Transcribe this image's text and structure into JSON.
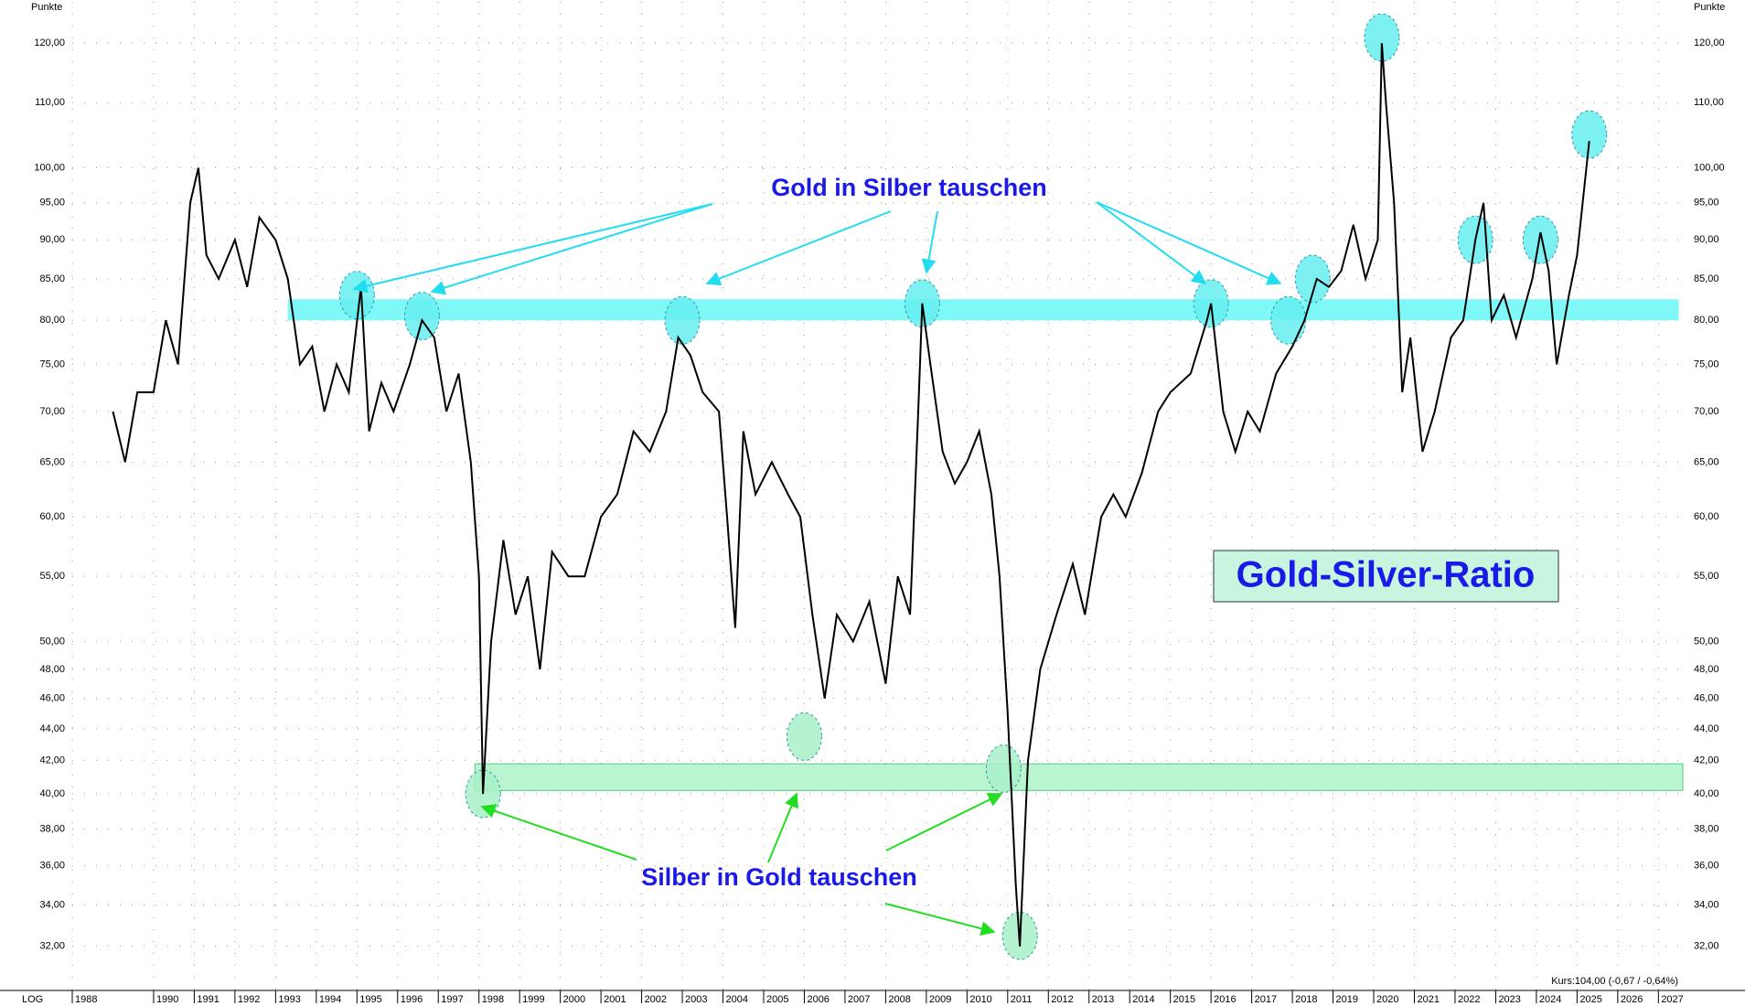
{
  "chart_data": {
    "type": "line",
    "log_scale": true,
    "grid": true,
    "axis_label": "Punkte",
    "scale_label": "LOG",
    "annotations": [
      "Gold in Silber tauschen",
      "Silber in Gold tauschen",
      "Gold-Silver-Ratio",
      "Kurs:104,00 (-0,67 / -0,64%)"
    ],
    "x": [
      1989.0,
      1989.3,
      1989.6,
      1990.0,
      1990.3,
      1990.6,
      1990.9,
      1991.1,
      1991.3,
      1991.6,
      1992.0,
      1992.3,
      1992.6,
      1993.0,
      1993.3,
      1993.6,
      1993.9,
      1994.2,
      1994.5,
      1994.8,
      1995.1,
      1995.3,
      1995.6,
      1995.9,
      1996.3,
      1996.6,
      1996.9,
      1997.2,
      1997.5,
      1997.8,
      1998.0,
      1998.1,
      1998.3,
      1998.6,
      1998.9,
      1999.2,
      1999.5,
      1999.8,
      2000.2,
      2000.6,
      2001.0,
      2001.4,
      2001.8,
      2002.2,
      2002.6,
      2002.9,
      2003.2,
      2003.5,
      2003.9,
      2004.1,
      2004.3,
      2004.5,
      2004.8,
      2005.2,
      2005.6,
      2005.9,
      2006.2,
      2006.5,
      2006.8,
      2007.2,
      2007.6,
      2008.0,
      2008.3,
      2008.6,
      2008.8,
      2008.9,
      2009.1,
      2009.4,
      2009.7,
      2010.0,
      2010.3,
      2010.6,
      2010.8,
      2011.0,
      2011.2,
      2011.3,
      2011.5,
      2011.8,
      2012.2,
      2012.6,
      2012.9,
      2013.3,
      2013.6,
      2013.9,
      2014.3,
      2014.7,
      2015.0,
      2015.5,
      2015.9,
      2016.0,
      2016.3,
      2016.6,
      2016.9,
      2017.2,
      2017.6,
      2018.0,
      2018.3,
      2018.6,
      2018.9,
      2019.2,
      2019.5,
      2019.8,
      2020.1,
      2020.2,
      2020.3,
      2020.5,
      2020.7,
      2020.9,
      2021.2,
      2021.5,
      2021.9,
      2022.2,
      2022.5,
      2022.7,
      2022.9,
      2023.2,
      2023.5,
      2023.9,
      2024.1,
      2024.3,
      2024.5,
      2024.8,
      2025.0,
      2025.3
    ],
    "series": [
      {
        "color": "#000000",
        "values": [
          70,
          65,
          72,
          72,
          80,
          75,
          95,
          100,
          88,
          85,
          90,
          84,
          93,
          90,
          85,
          75,
          77,
          70,
          75,
          72,
          84,
          68,
          73,
          70,
          75,
          80,
          78,
          70,
          74,
          65,
          55,
          40,
          50,
          58,
          52,
          55,
          48,
          57,
          55,
          55,
          60,
          62,
          68,
          66,
          70,
          78,
          76,
          72,
          70,
          60,
          51,
          68,
          62,
          65,
          62,
          60,
          52,
          46,
          52,
          50,
          53,
          47,
          55,
          52,
          70,
          82,
          75,
          66,
          63,
          65,
          68,
          62,
          55,
          45,
          35,
          32,
          42,
          48,
          52,
          56,
          52,
          60,
          62,
          60,
          64,
          70,
          72,
          74,
          80,
          82,
          70,
          66,
          70,
          68,
          74,
          77,
          80,
          85,
          84,
          86,
          92,
          85,
          90,
          120,
          110,
          95,
          72,
          78,
          66,
          70,
          78,
          80,
          90,
          95,
          80,
          83,
          78,
          85,
          91,
          86,
          75,
          83,
          88,
          104
        ]
      }
    ],
    "bands": [
      {
        "from": 80,
        "to": 82.5,
        "xfrom": 1993.3,
        "xto": 2027.5,
        "color": "#7ff8f8"
      },
      {
        "from": 40.2,
        "to": 41.8,
        "xfrom": 1997.9,
        "xto": 2027.6,
        "color": "#b8f5d0"
      }
    ],
    "highlights": [
      {
        "x": 1995.0,
        "y": 83,
        "color": "#66eef0"
      },
      {
        "x": 1996.6,
        "y": 80.5,
        "color": "#66eef0"
      },
      {
        "x": 2003.0,
        "y": 80,
        "color": "#66eef0"
      },
      {
        "x": 2008.9,
        "y": 82,
        "color": "#66eef0"
      },
      {
        "x": 2016.0,
        "y": 82,
        "color": "#66eef0"
      },
      {
        "x": 2017.9,
        "y": 80,
        "color": "#66eef0"
      },
      {
        "x": 2018.5,
        "y": 85,
        "color": "#66eef0"
      },
      {
        "x": 2020.2,
        "y": 121,
        "color": "#66eef0"
      },
      {
        "x": 2022.5,
        "y": 90,
        "color": "#66eef0"
      },
      {
        "x": 2024.1,
        "y": 90,
        "color": "#66eef0"
      },
      {
        "x": 2025.3,
        "y": 105,
        "color": "#66eef0"
      },
      {
        "x": 1998.1,
        "y": 40,
        "color": "#a8f0c8"
      },
      {
        "x": 2006.0,
        "y": 43.5,
        "color": "#a8f0c8"
      },
      {
        "x": 2011.3,
        "y": 32.5,
        "color": "#a8f0c8"
      },
      {
        "x": 2010.9,
        "y": 41.5,
        "color": "#a8f0c8"
      }
    ],
    "xlim": [
      1988,
      2027.6
    ],
    "xticks": [
      1988,
      1990,
      1991,
      1992,
      1993,
      1994,
      1995,
      1996,
      1997,
      1998,
      1999,
      2000,
      2001,
      2002,
      2003,
      2004,
      2005,
      2006,
      2007,
      2008,
      2009,
      2010,
      2011,
      2012,
      2013,
      2014,
      2015,
      2016,
      2017,
      2018,
      2019,
      2020,
      2021,
      2022,
      2023,
      2024,
      2025,
      2026,
      2027
    ],
    "ylim": [
      30,
      127.5
    ],
    "yticks": [
      {
        "value": 32,
        "label": "32,00"
      },
      {
        "value": 34,
        "label": "34,00"
      },
      {
        "value": 36,
        "label": "36,00"
      },
      {
        "value": 38,
        "label": "38,00"
      },
      {
        "value": 40,
        "label": "40,00"
      },
      {
        "value": 42,
        "label": "42,00"
      },
      {
        "value": 44,
        "label": "44,00"
      },
      {
        "value": 46,
        "label": "46,00"
      },
      {
        "value": 48,
        "label": "48,00"
      },
      {
        "value": 50,
        "label": "50,00"
      },
      {
        "value": 55,
        "label": "55,00"
      },
      {
        "value": 60,
        "label": "60,00"
      },
      {
        "value": 65,
        "label": "65,00"
      },
      {
        "value": 70,
        "label": "70,00"
      },
      {
        "value": 75,
        "label": "75,00"
      },
      {
        "value": 80,
        "label": "80,00"
      },
      {
        "value": 85,
        "label": "85,00"
      },
      {
        "value": 90,
        "label": "90,00"
      },
      {
        "value": 95,
        "label": "95,00"
      },
      {
        "value": 100,
        "label": "100,00"
      },
      {
        "value": 110,
        "label": "110,00"
      },
      {
        "value": 120,
        "label": "120,00"
      }
    ]
  }
}
